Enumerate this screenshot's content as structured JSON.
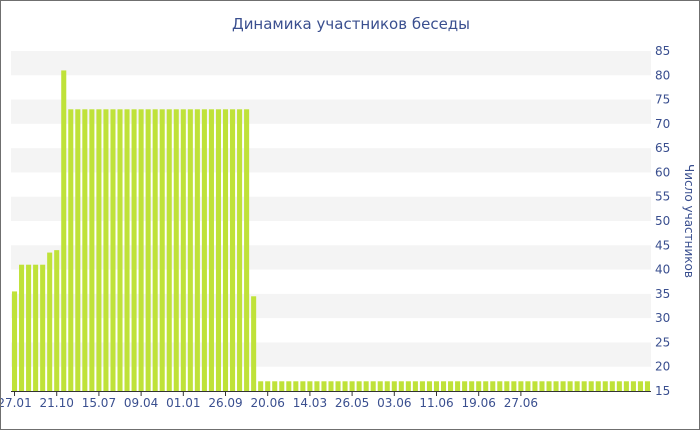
{
  "chart_data": {
    "type": "bar",
    "title": "Динамика участников беседы",
    "xlabel": "",
    "ylabel": "Число участников",
    "ylim": [
      15,
      85
    ],
    "yticks": [
      15,
      20,
      25,
      30,
      35,
      40,
      45,
      50,
      55,
      60,
      65,
      70,
      75,
      80,
      85
    ],
    "y_axis_side": "right",
    "bar_color": "#bfe239",
    "band_color": "#f4f4f4",
    "x_tick_labels": [
      "27.01",
      "21.10",
      "15.07",
      "09.04",
      "01.01",
      "26.09",
      "20.06",
      "14.03",
      "26.05",
      "03.06",
      "11.06",
      "19.06",
      "27.06"
    ],
    "x_tick_indices": [
      0,
      6,
      12,
      18,
      24,
      30,
      36,
      42,
      48,
      54,
      60,
      66,
      72
    ],
    "values": [
      35.5,
      41,
      41,
      41,
      41,
      43.5,
      44,
      81,
      73,
      73,
      73,
      73,
      73,
      73,
      73,
      73,
      73,
      73,
      73,
      73,
      73,
      73,
      73,
      73,
      73,
      73,
      73,
      73,
      73,
      73,
      73,
      73,
      73,
      73,
      34.5,
      17,
      17,
      17,
      17,
      17,
      17,
      17,
      17,
      17,
      17,
      17,
      17,
      17,
      17,
      17,
      17,
      17,
      17,
      17,
      17,
      17,
      17,
      17,
      17,
      17,
      17,
      17,
      17,
      17,
      17,
      17,
      17,
      17,
      17,
      17,
      17,
      17,
      17,
      17,
      17,
      17,
      17,
      17,
      17,
      17,
      17,
      17,
      17,
      17,
      17,
      17,
      17,
      17,
      17,
      17,
      17
    ]
  }
}
